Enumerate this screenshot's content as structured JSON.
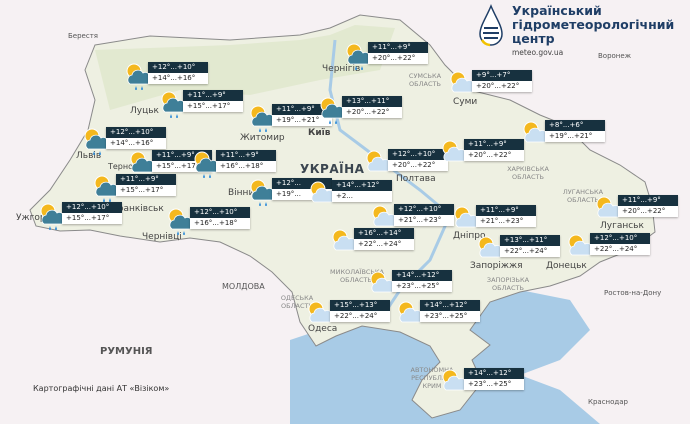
{
  "colors": {
    "label_dark": "#17313f",
    "sea": "#a8cbe6",
    "land": "#eef0e2",
    "neighbor": "#f6f1f3"
  },
  "logo": {
    "line1": "Український",
    "line2": "гідрометеорологічний",
    "line3": "центр",
    "url": "meteo.gov.ua"
  },
  "credit": "Картографічні дані АТ «Візіком»",
  "places": {
    "brest": "Берестя",
    "lutsk": "Луцьк",
    "lviv": "Львів",
    "ternopil": "Тернопіль",
    "zhytomyr": "Житомир",
    "kyiv": "Київ",
    "chernihiv": "Чернігів",
    "sumy": "Суми",
    "poltava": "Полтава",
    "vinnytsia": "Вінниця",
    "frankivsk": "Франківськ",
    "uzhhorod": "Ужгород",
    "chernivtsi": "Чернівці",
    "dnipro": "Дніпро",
    "zaporizhzhia": "Запоріжжя",
    "donetsk": "Донецьк",
    "luhansk": "Луганськ",
    "odesa": "Одеса",
    "ukraine": "УКРАЇНА",
    "moldova": "МОЛДОВА",
    "romania": "РУМУНІЯ",
    "voronezh": "Воронеж",
    "rostov": "Ростов-на-Дону",
    "krasnodar": "Краснодар",
    "sumy_obl": "СУМСЬКА ОБЛАСТЬ",
    "kharkiv_obl": "ХАРКІВСЬКА ОБЛАСТЬ",
    "luhansk_obl": "ЛУГАНСЬКА ОБЛАСТЬ",
    "zaporizhzhia_obl": "ЗАПОРІЗЬКА ОБЛАСТЬ",
    "mykolaiv_obl": "МИКОЛАЇВСЬКА ОБЛАСТЬ",
    "odesa_obl": "ОДЕСЬКА ОБЛАСТЬ",
    "crimea": "АВТОНОМНА РЕСПУБЛІКА КРИМ"
  },
  "forecasts": [
    {
      "night": "+12°...+10°",
      "day": "+14°...+16°",
      "icon": "sun-cloud-rain"
    },
    {
      "night": "+11°...+9°",
      "day": "+15°...+17°",
      "icon": "sun-cloud-rain"
    },
    {
      "night": "+11°...+9°",
      "day": "+20°...+22°",
      "icon": "sun-cloud-rain"
    },
    {
      "night": "+11°...+9°",
      "day": "+19°...+21°",
      "icon": "sun-cloud-rain"
    },
    {
      "night": "+13°...+11°",
      "day": "+20°...+22°",
      "icon": "sun-cloud-rain"
    },
    {
      "night": "+9°...+7°",
      "day": "+20°...+22°",
      "icon": "sun-cloud"
    },
    {
      "night": "+8°...+6°",
      "day": "+19°...+21°",
      "icon": "sun-cloud"
    },
    {
      "night": "+12°...+10°",
      "day": "+14°...+16°",
      "icon": "sun-cloud-rain"
    },
    {
      "night": "+11°...+9°",
      "day": "+15°...+17°",
      "icon": "sun-cloud-rain"
    },
    {
      "night": "+11°...+9°",
      "day": "+16°...+18°",
      "icon": "sun-cloud-rain"
    },
    {
      "night": "+11°...+9°",
      "day": "+15°...+17°",
      "icon": "sun-cloud-rain"
    },
    {
      "night": "+12°...+10°",
      "day": "+15°...+17°",
      "icon": "sun-cloud-rain"
    },
    {
      "night": "+12°...+10°",
      "day": "+16°...+18°",
      "icon": "sun-cloud-rain"
    },
    {
      "night": "+12°...",
      "day": "+19°...",
      "icon": "sun-cloud-rain"
    },
    {
      "night": "+12°...+10°",
      "day": "+20°...+22°",
      "icon": "sun-cloud"
    },
    {
      "night": "+11°...+9°",
      "day": "+20°...+22°",
      "icon": "sun-cloud"
    },
    {
      "night": "+14°...+12°",
      "day": "+2...",
      "icon": "sun-cloud"
    },
    {
      "night": "+12°...+10°",
      "day": "+21°...+23°",
      "icon": "sun-cloud"
    },
    {
      "night": "+11°...+9°",
      "day": "+21°...+23°",
      "icon": "sun-cloud"
    },
    {
      "night": "+11°...+9°",
      "day": "+20°...+22°",
      "icon": "sun-cloud"
    },
    {
      "night": "+16°...+14°",
      "day": "+22°...+24°",
      "icon": "sun-cloud"
    },
    {
      "night": "+13°...+11°",
      "day": "+22°...+24°",
      "icon": "sun-cloud"
    },
    {
      "night": "+12°...+10°",
      "day": "+22°...+24°",
      "icon": "sun-cloud"
    },
    {
      "night": "+14°...+12°",
      "day": "+23°...+25°",
      "icon": "sun-cloud"
    },
    {
      "night": "+15°...+13°",
      "day": "+22°...+24°",
      "icon": "sun-cloud"
    },
    {
      "night": "+14°...+12°",
      "day": "+23°...+25°",
      "icon": "sun-cloud"
    },
    {
      "night": "+14°...+12°",
      "day": "+23°...+25°",
      "icon": "sun-cloud"
    }
  ]
}
